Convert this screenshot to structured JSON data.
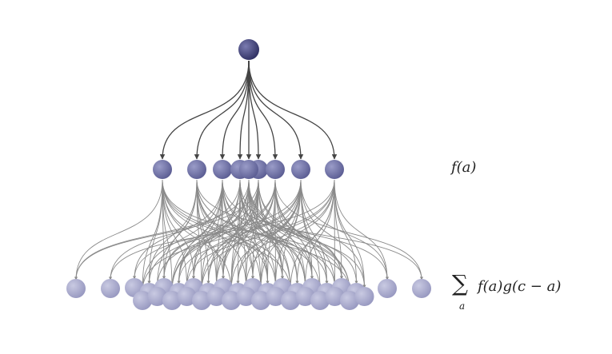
{
  "colors": {
    "root": "#3e3f75",
    "level1": "#6f71a5",
    "level2": "#a5a6cb",
    "edge_top": "#444444",
    "edge_bottom": "#8a8a8a"
  },
  "labels": {
    "middle": "f(a)",
    "bottom_sum_sign": "∑",
    "bottom_sum_sub": "a",
    "bottom_expr": "f(a)g(c − a)"
  },
  "tree": {
    "root_count": 1,
    "level1_count": 8,
    "level2_count": 36
  }
}
